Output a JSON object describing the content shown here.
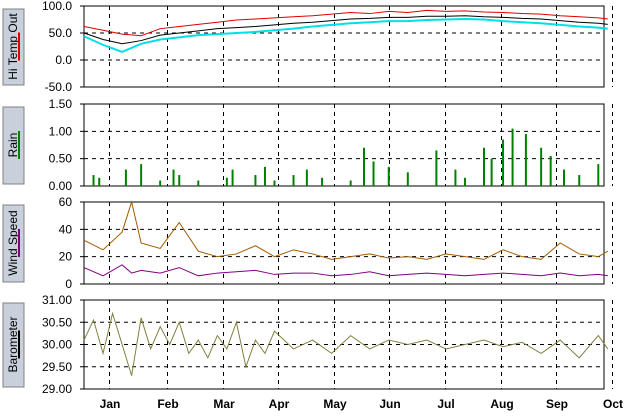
{
  "months": [
    "Jan",
    "Feb",
    "Mar",
    "Apr",
    "May",
    "Jun",
    "Jul",
    "Aug",
    "Sep",
    "Oct"
  ],
  "chart_data": [
    {
      "type": "line",
      "id": "temp",
      "side_label": "Hi Temp Out",
      "side_color": "#e00000",
      "ylim": [
        -50,
        100
      ],
      "yticks": [
        "100.0",
        "50.0",
        "0.0",
        "-50.0"
      ],
      "ytick_values": [
        100,
        50,
        0,
        -50
      ],
      "x": [
        0,
        10,
        20,
        30,
        40,
        50,
        60,
        70,
        80,
        90,
        100,
        110,
        120,
        130,
        140,
        150,
        160,
        170,
        180,
        190,
        200,
        210,
        220,
        230,
        240,
        250,
        260,
        270,
        275
      ],
      "series": [
        {
          "name": "Hi Temp Out",
          "color": "#e00000",
          "values": [
            62,
            55,
            48,
            45,
            58,
            62,
            66,
            70,
            74,
            76,
            78,
            80,
            82,
            85,
            88,
            86,
            90,
            88,
            92,
            90,
            91,
            89,
            88,
            86,
            85,
            82,
            80,
            78,
            76
          ]
        },
        {
          "name": "",
          "color": "#00e0e8",
          "values": [
            44,
            28,
            15,
            30,
            38,
            42,
            46,
            48,
            50,
            52,
            55,
            58,
            62,
            65,
            68,
            70,
            72,
            72,
            74,
            75,
            76,
            75,
            72,
            70,
            68,
            65,
            62,
            60,
            58
          ]
        },
        {
          "name": "",
          "color": "#000000",
          "values": [
            50,
            38,
            30,
            36,
            46,
            50,
            54,
            58,
            60,
            62,
            65,
            68,
            70,
            73,
            76,
            77,
            79,
            79,
            81,
            81,
            82,
            80,
            79,
            77,
            76,
            73,
            70,
            68,
            66
          ]
        }
      ]
    },
    {
      "type": "bar",
      "id": "rain",
      "side_label": "Rain",
      "side_color": "#008000",
      "ylim": [
        0,
        1.5
      ],
      "yticks": [
        "1.50",
        "1.00",
        "0.50",
        "0.00"
      ],
      "ytick_values": [
        1.5,
        1.0,
        0.5,
        0.0
      ],
      "x": [
        5,
        8,
        22,
        30,
        40,
        47,
        50,
        60,
        75,
        78,
        90,
        95,
        100,
        110,
        117,
        125,
        140,
        147,
        152,
        160,
        170,
        185,
        195,
        200,
        210,
        214,
        220,
        225,
        232,
        240,
        245,
        252,
        260,
        270
      ],
      "values": [
        0.2,
        0.15,
        0.3,
        0.4,
        0.1,
        0.3,
        0.2,
        0.1,
        0.15,
        0.3,
        0.2,
        0.35,
        0.1,
        0.2,
        0.3,
        0.15,
        0.1,
        0.7,
        0.45,
        0.35,
        0.25,
        0.65,
        0.3,
        0.15,
        0.7,
        0.5,
        0.85,
        1.05,
        0.95,
        0.7,
        0.55,
        0.3,
        0.2,
        0.4
      ],
      "color": "#008000"
    },
    {
      "type": "line",
      "id": "wind",
      "side_label": "Wind Speed",
      "side_color": "#800080",
      "ylim": [
        0,
        60
      ],
      "yticks": [
        "60",
        "40",
        "20",
        "0"
      ],
      "ytick_values": [
        60,
        40,
        20,
        0
      ],
      "x": [
        0,
        10,
        20,
        25,
        30,
        40,
        50,
        60,
        70,
        80,
        90,
        100,
        110,
        120,
        130,
        140,
        150,
        160,
        170,
        180,
        190,
        200,
        210,
        220,
        230,
        240,
        250,
        260,
        270,
        275
      ],
      "series": [
        {
          "name": "Wind Speed",
          "color": "#a05a00",
          "values": [
            32,
            25,
            38,
            60,
            30,
            26,
            45,
            24,
            20,
            22,
            28,
            20,
            25,
            22,
            18,
            20,
            22,
            19,
            20,
            18,
            22,
            20,
            18,
            25,
            20,
            18,
            30,
            22,
            20,
            24
          ]
        },
        {
          "name": "",
          "color": "#800080",
          "values": [
            12,
            6,
            14,
            8,
            10,
            8,
            12,
            6,
            8,
            9,
            10,
            7,
            8,
            8,
            6,
            7,
            9,
            6,
            7,
            8,
            7,
            6,
            7,
            8,
            7,
            6,
            8,
            6,
            7,
            6
          ]
        }
      ]
    },
    {
      "type": "line",
      "id": "baro",
      "side_label": "Barometer",
      "side_color": "#000000",
      "ylim": [
        29.0,
        31.0
      ],
      "yticks": [
        "31.00",
        "30.50",
        "30.00",
        "29.50",
        "29.00"
      ],
      "ytick_values": [
        31.0,
        30.5,
        30.0,
        29.5,
        29.0
      ],
      "x": [
        0,
        5,
        10,
        15,
        20,
        25,
        30,
        35,
        40,
        45,
        50,
        55,
        60,
        65,
        70,
        75,
        80,
        85,
        90,
        95,
        100,
        110,
        120,
        130,
        140,
        150,
        160,
        170,
        180,
        190,
        200,
        210,
        220,
        230,
        240,
        250,
        260,
        270,
        275
      ],
      "series": [
        {
          "name": "Barometer",
          "color": "#808040",
          "values": [
            30.1,
            30.55,
            29.8,
            30.7,
            30.0,
            29.3,
            30.6,
            29.9,
            30.4,
            30.0,
            30.5,
            29.8,
            30.1,
            29.7,
            30.2,
            29.9,
            30.5,
            29.5,
            30.1,
            29.8,
            30.3,
            29.9,
            30.1,
            29.8,
            30.2,
            29.9,
            30.1,
            30.0,
            30.1,
            29.9,
            30.0,
            30.1,
            29.95,
            30.05,
            29.8,
            30.1,
            29.7,
            30.2,
            29.9
          ]
        }
      ]
    }
  ]
}
